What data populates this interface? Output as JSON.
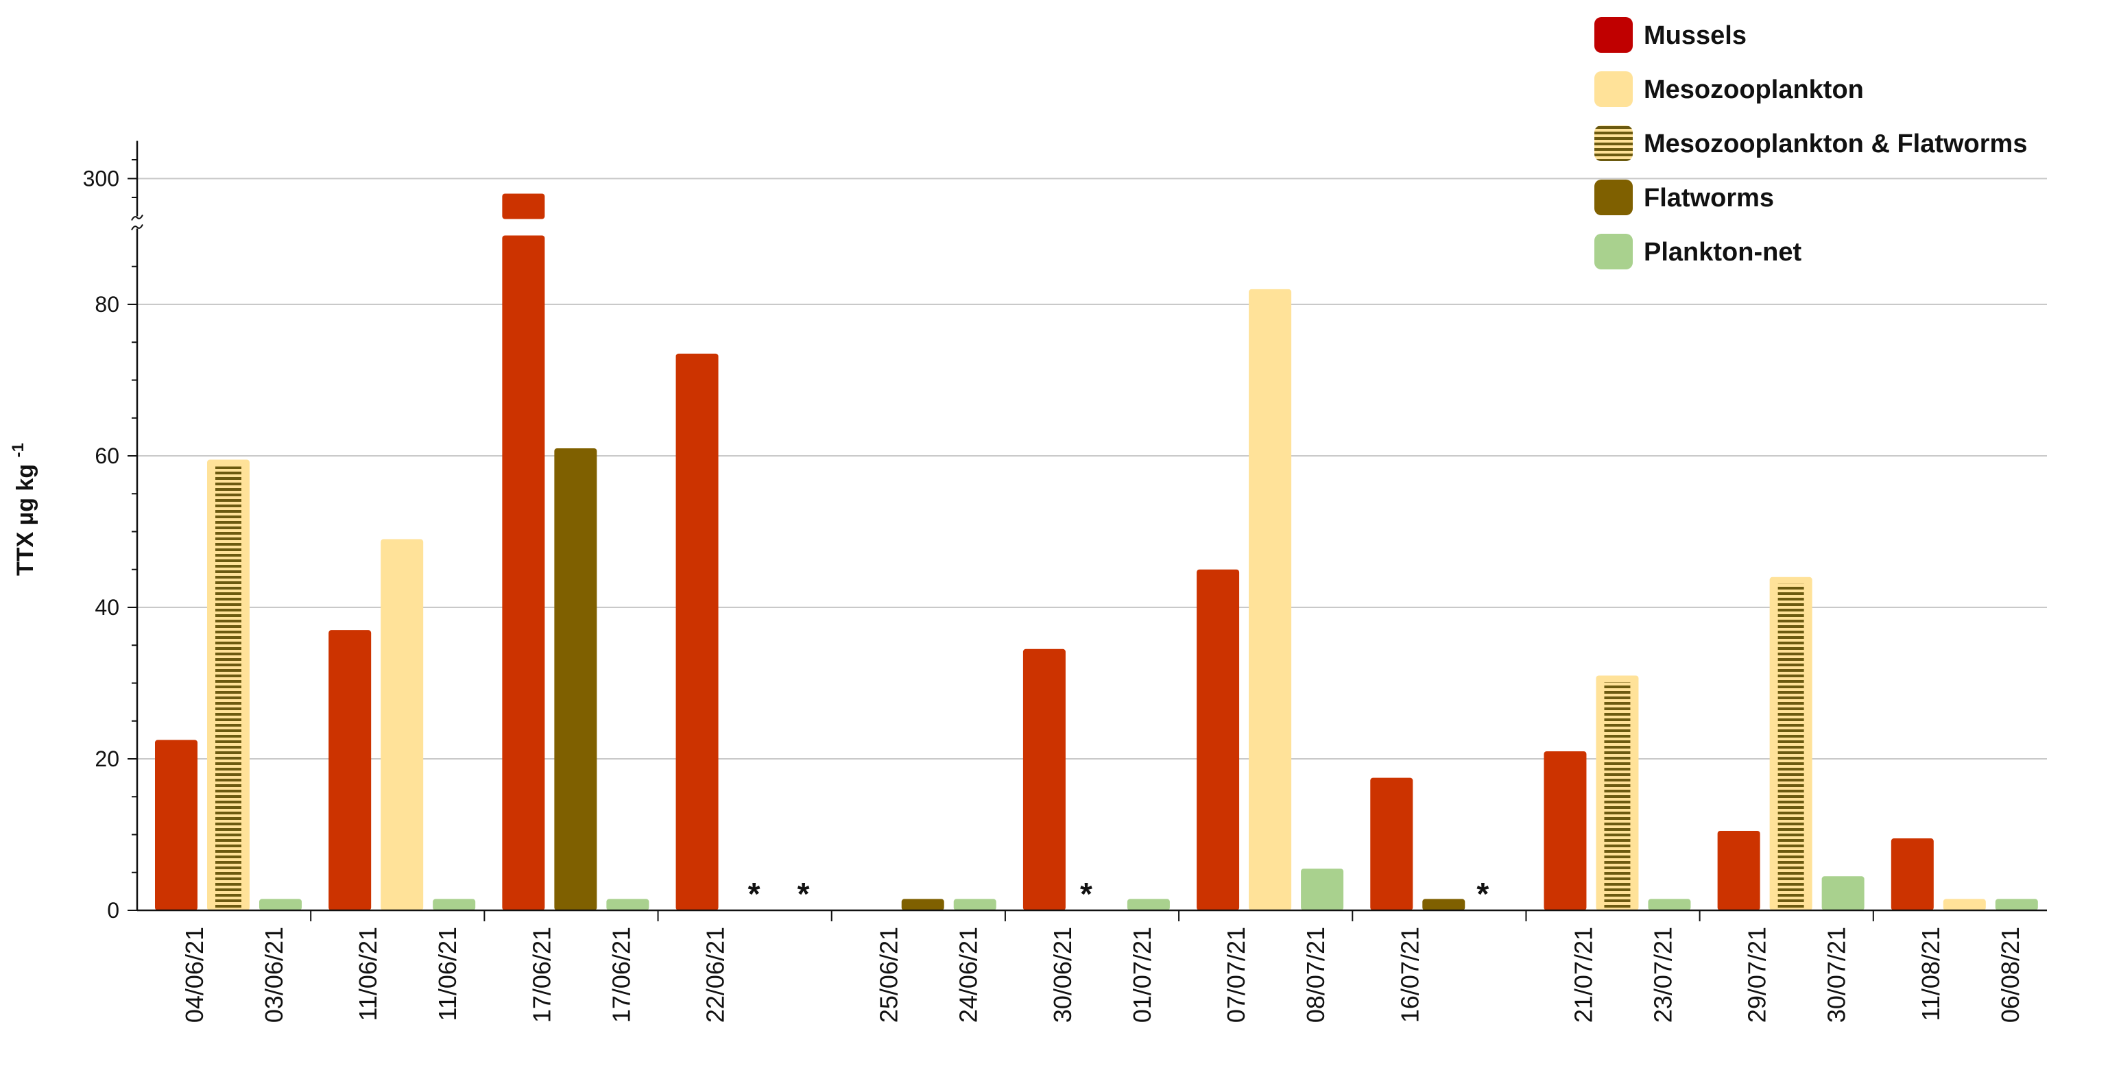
{
  "chart_data": {
    "type": "bar",
    "ylabel": "TTX  µg kg",
    "ylabel_exponent": "-1",
    "y_ticks": [
      "0",
      "20",
      "40",
      "60",
      "80",
      "300"
    ],
    "y_axis_break": {
      "lower_max": 90,
      "upper_min": 290,
      "upper_max": 310
    },
    "ylim": [
      0,
      310
    ],
    "grid": true,
    "legend_position": "top-right",
    "series": [
      {
        "name": "Mussels",
        "color": "#cc3300",
        "icon_color": "#c00000",
        "pattern": "solid"
      },
      {
        "name": "Mesozooplankton",
        "color": "#ffe299",
        "pattern": "solid"
      },
      {
        "name": "Mesozooplankton & Flatworms",
        "color": "#ffe299",
        "stripe_color": "#6b5a10",
        "pattern": "horizontal-stripes"
      },
      {
        "name": "Flatworms",
        "color": "#7f6000",
        "pattern": "solid"
      },
      {
        "name": "Plankton-net",
        "color": "#a9d18e",
        "pattern": "solid"
      }
    ],
    "groups": [
      {
        "x_labels": [
          "04/06/21",
          "03/06/21"
        ],
        "bars": [
          {
            "series": "Mussels",
            "value": 22.5
          },
          {
            "series": "Mesozooplankton & Flatworms",
            "value": 59.5
          },
          {
            "series": "Plankton-net",
            "value": 1.5
          }
        ]
      },
      {
        "x_labels": [
          "11/06/21",
          "11/06/21"
        ],
        "bars": [
          {
            "series": "Mussels",
            "value": 37
          },
          {
            "series": "Mesozooplankton",
            "value": 49
          },
          {
            "series": "Plankton-net",
            "value": 1.5
          }
        ]
      },
      {
        "x_labels": [
          "17/06/21",
          "17/06/21"
        ],
        "bars": [
          {
            "series": "Mussels",
            "value": 296
          },
          {
            "series": "Flatworms",
            "value": 61
          },
          {
            "series": "Plankton-net",
            "value": 1.5
          }
        ]
      },
      {
        "x_labels": [
          "22/06/21",
          ""
        ],
        "bars": [
          {
            "series": "Mussels",
            "value": 73.5
          }
        ],
        "asterisks": [
          "*",
          "*"
        ]
      },
      {
        "x_labels": [
          "25/06/21",
          "24/06/21"
        ],
        "bars": [
          {
            "series": "Flatworms",
            "value": 1.5
          },
          {
            "series": "Plankton-net",
            "value": 1.5
          }
        ],
        "bar_slot_offset": 1
      },
      {
        "x_labels": [
          "30/06/21",
          "01/07/21"
        ],
        "bars": [
          {
            "series": "Mussels",
            "value": 34.5
          },
          {
            "series": "Plankton-net",
            "value": 1.5,
            "slot": 2
          }
        ],
        "asterisks": [
          "*"
        ]
      },
      {
        "x_labels": [
          "07/07/21",
          "08/07/21"
        ],
        "bars": [
          {
            "series": "Mussels",
            "value": 45
          },
          {
            "series": "Mesozooplankton",
            "value": 82
          },
          {
            "series": "Plankton-net",
            "value": 5.5
          }
        ]
      },
      {
        "x_labels": [
          "16/07/21",
          ""
        ],
        "bars": [
          {
            "series": "Mussels",
            "value": 17.5
          },
          {
            "series": "Flatworms",
            "value": 1.5
          }
        ],
        "asterisks": [
          "*"
        ]
      },
      {
        "x_labels": [
          "21/07/21",
          "23/07/21"
        ],
        "bars": [
          {
            "series": "Mussels",
            "value": 21
          },
          {
            "series": "Mesozooplankton & Flatworms",
            "value": 31
          },
          {
            "series": "Plankton-net",
            "value": 1.5
          }
        ]
      },
      {
        "x_labels": [
          "29/07/21",
          "30/07/21"
        ],
        "bars": [
          {
            "series": "Mussels",
            "value": 10.5
          },
          {
            "series": "Mesozooplankton & Flatworms",
            "value": 44
          },
          {
            "series": "Plankton-net",
            "value": 4.5
          }
        ]
      },
      {
        "x_labels": [
          "11/08/21",
          "06/08/21"
        ],
        "bars": [
          {
            "series": "Mussels",
            "value": 9.5
          },
          {
            "series": "Mesozooplankton",
            "value": 1.5
          },
          {
            "series": "Plankton-net",
            "value": 1.5
          }
        ]
      }
    ]
  }
}
